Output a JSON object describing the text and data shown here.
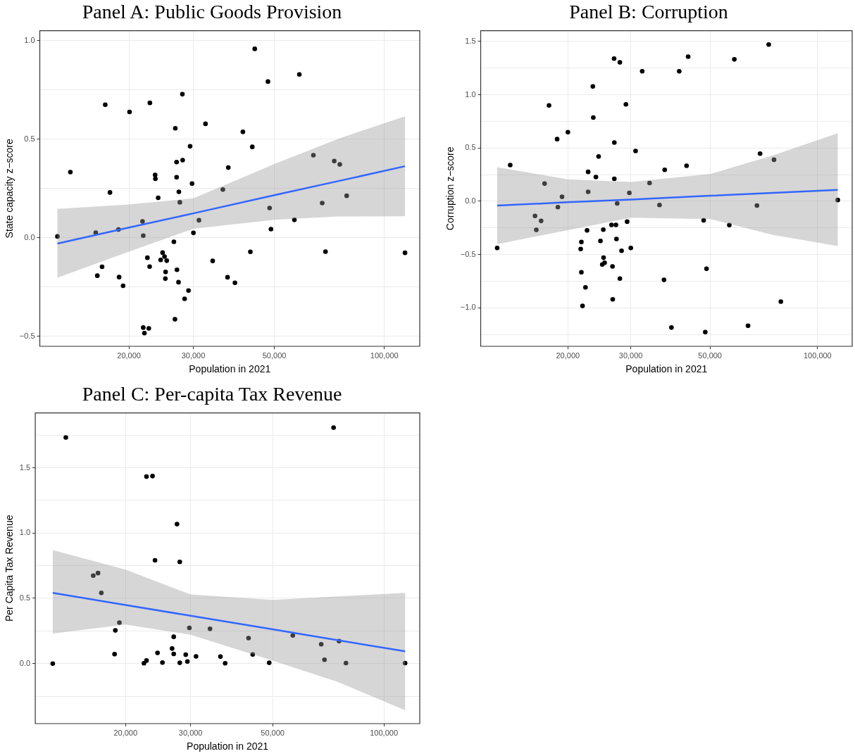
{
  "chart_data": [
    {
      "type": "scatter",
      "title": "Panel A: Public Goods Provision",
      "xlabel": "Population in 2021",
      "ylabel": "State capacity z−score",
      "log": "x",
      "grid": true,
      "xlim": [
        11400,
        125000
      ],
      "xticks": [
        {
          "value": 20000,
          "label": "20,000"
        },
        {
          "value": 30000,
          "label": "30,000"
        },
        {
          "value": 50000,
          "label": "50,000"
        },
        {
          "value": 100000,
          "label": "100,000"
        }
      ],
      "ylim": [
        -0.55,
        1.05
      ],
      "yticks": [
        {
          "value": -0.5,
          "label": "−0.5"
        },
        {
          "value": -0.25,
          "label": null
        },
        {
          "value": 0,
          "label": "0.0"
        },
        {
          "value": 0.25,
          "label": null
        },
        {
          "value": 0.5,
          "label": "0.5"
        },
        {
          "value": 0.75,
          "label": null
        },
        {
          "value": 1,
          "label": "1.0"
        }
      ],
      "series": [
        {
          "marker": "circle",
          "color": "#000000",
          "x": [
            12740,
            13820,
            16220,
            16380,
            16880,
            17220,
            17740,
            18720,
            18790,
            19270,
            20070,
            21780,
            21880,
            21880,
            22040,
            22460,
            22660,
            22780,
            22820,
            23580,
            23620,
            24040,
            24420,
            24720,
            25020,
            25190,
            25150,
            25370,
            26540,
            26720,
            26780,
            27000,
            27000,
            27060,
            27330,
            27390,
            27560,
            28000,
            28050,
            28400,
            29100,
            29400,
            29760,
            30020,
            31080,
            32390,
            33890,
            36140,
            37220,
            37400,
            39000,
            41000,
            42980,
            43500,
            44180,
            48020,
            48520,
            48940,
            56720,
            58520,
            63940,
            67600,
            69000,
            72920,
            75520,
            78860,
            113900
          ],
          "values": [
            0.007,
            0.333,
            0.026,
            -0.192,
            -0.147,
            0.675,
            0.23,
            0.042,
            -0.199,
            -0.243,
            0.638,
            0.083,
            0.011,
            -0.455,
            -0.483,
            -0.101,
            -0.459,
            -0.146,
            0.684,
            0.319,
            0.299,
            0.203,
            -0.112,
            -0.075,
            -0.095,
            -0.173,
            -0.207,
            -0.116,
            -0.02,
            -0.413,
            0.555,
            0.307,
            0.384,
            -0.162,
            -0.225,
            0.233,
            0.18,
            0.728,
            0.394,
            -0.309,
            -0.267,
            0.464,
            0.275,
            0.025,
            0.089,
            0.578,
            -0.117,
            0.245,
            -0.2,
            0.356,
            -0.228,
            0.537,
            -0.071,
            0.461,
            0.958,
            0.792,
            0.151,
            0.044,
            0.091,
            0.828,
            0.419,
            0.176,
            -0.07,
            0.389,
            0.372,
            0.213,
            -0.076
          ]
        },
        {
          "type": "line",
          "marker": "none",
          "color": "#3366ff",
          "x": [
            12740,
            20000,
            30000,
            50000,
            75000,
            113900
          ],
          "values": [
            -0.029,
            0.052,
            0.124,
            0.216,
            0.288,
            0.363
          ],
          "lower": [
            -0.202,
            -0.07,
            0.046,
            0.091,
            0.108,
            0.109
          ],
          "upper": [
            0.147,
            0.169,
            0.2,
            0.374,
            0.503,
            0.616
          ]
        }
      ]
    },
    {
      "type": "scatter",
      "title": "Panel B: Corruption",
      "xlabel": "Population in 2021",
      "ylabel": "Corruption z−score",
      "log": "x",
      "grid": true,
      "xlim": [
        11400,
        125000
      ],
      "xticks": [
        {
          "value": 20000,
          "label": "20,000"
        },
        {
          "value": 30000,
          "label": "30,000"
        },
        {
          "value": 50000,
          "label": "50,000"
        },
        {
          "value": 100000,
          "label": "100,000"
        }
      ],
      "ylim": [
        -1.36,
        1.6
      ],
      "yticks": [
        {
          "value": -1.25,
          "label": null
        },
        {
          "value": -1,
          "label": "−1.0"
        },
        {
          "value": -0.75,
          "label": null
        },
        {
          "value": -0.5,
          "label": "−0.5"
        },
        {
          "value": -0.25,
          "label": null
        },
        {
          "value": 0,
          "label": "0.0"
        },
        {
          "value": 0.25,
          "label": null
        },
        {
          "value": 0.5,
          "label": "0.5"
        },
        {
          "value": 0.75,
          "label": null
        },
        {
          "value": 1,
          "label": "1.0"
        },
        {
          "value": 1.25,
          "label": null
        },
        {
          "value": 1.5,
          "label": "1.5"
        }
      ],
      "series": [
        {
          "marker": "circle",
          "color": "#000000",
          "x": [
            12680,
            13790,
            16180,
            16320,
            16830,
            17210,
            17710,
            18660,
            18750,
            19260,
            20000,
            21720,
            21820,
            21820,
            21980,
            22400,
            22630,
            22790,
            22790,
            23490,
            23560,
            23960,
            24380,
            24670,
            24960,
            25130,
            25170,
            25340,
            26490,
            26660,
            26700,
            26940,
            26980,
            26980,
            27260,
            27350,
            27480,
            27960,
            27960,
            28270,
            29070,
            29300,
            29720,
            30000,
            30940,
            32290,
            33860,
            36100,
            37160,
            37330,
            38980,
            40990,
            42980,
            43420,
            47980,
            48490,
            48880,
            56620,
            58480,
            63880,
            67650,
            69030,
            72990,
            75520,
            78920,
            113900
          ],
          "values": [
            -0.437,
            0.34,
            -0.137,
            -0.268,
            -0.184,
            0.166,
            0.899,
            0.583,
            -0.055,
            0.042,
            0.648,
            -0.447,
            -0.382,
            -0.665,
            -0.981,
            -0.807,
            -0.273,
            0.276,
            0.089,
            1.077,
            0.785,
            0.228,
            0.42,
            -0.372,
            -0.593,
            -0.266,
            -0.529,
            -0.576,
            -0.221,
            -0.611,
            -0.919,
            1.338,
            0.211,
            0.551,
            -0.221,
            -0.353,
            -0.02,
            1.303,
            -0.725,
            -0.464,
            0.909,
            -0.191,
            0.079,
            -0.437,
            0.472,
            1.219,
            0.171,
            -0.035,
            -0.737,
            0.295,
            -1.184,
            1.219,
            0.333,
            1.356,
            -0.179,
            -1.226,
            -0.633,
            -0.223,
            1.331,
            -1.167,
            -0.04,
            0.447,
            1.47,
            0.39,
            -0.941,
            0.012
          ]
        },
        {
          "type": "line",
          "marker": "none",
          "color": "#3366ff",
          "x": [
            12680,
            20000,
            30000,
            50000,
            75000,
            113900
          ],
          "values": [
            -0.04,
            -0.009,
            0.017,
            0.052,
            0.079,
            0.107
          ],
          "lower": [
            -0.402,
            -0.27,
            -0.154,
            -0.166,
            -0.315,
            -0.42
          ],
          "upper": [
            0.32,
            0.206,
            0.181,
            0.256,
            0.43,
            0.638
          ]
        }
      ]
    },
    {
      "type": "scatter",
      "title": "Panel C: Per-capita Tax Revenue",
      "xlabel": "Population in 2021",
      "ylabel": "Per Capita Tax Revenue",
      "log": "x",
      "grid": true,
      "xlim": [
        11400,
        125000
      ],
      "xticks": [
        {
          "value": 20000,
          "label": "20,000"
        },
        {
          "value": 30000,
          "label": "30,000"
        },
        {
          "value": 50000,
          "label": "50,000"
        },
        {
          "value": 100000,
          "label": "100,000"
        }
      ],
      "ylim": [
        -0.46,
        1.92
      ],
      "yticks": [
        {
          "value": -0.25,
          "label": null
        },
        {
          "value": 0,
          "label": "0.0"
        },
        {
          "value": 0.25,
          "label": null
        },
        {
          "value": 0.5,
          "label": "0.5"
        },
        {
          "value": 0.75,
          "label": null
        },
        {
          "value": 1,
          "label": "1.0"
        },
        {
          "value": 1.25,
          "label": null
        },
        {
          "value": 1.5,
          "label": "1.5"
        },
        {
          "value": 1.75,
          "label": null
        }
      ],
      "series": [
        {
          "marker": "circle",
          "color": "#000000",
          "x": [
            12710,
            13790,
            16360,
            16850,
            17200,
            18680,
            18770,
            19250,
            22430,
            22790,
            22790,
            23660,
            24030,
            24410,
            25170,
            26730,
            27000,
            27000,
            27560,
            28040,
            28040,
            29100,
            29400,
            29770,
            31030,
            33850,
            36120,
            37200,
            43030,
            44160,
            48940,
            56700,
            67660,
            69060,
            73080,
            75630,
            78940,
            114100
          ],
          "values": [
            0,
            1.732,
            0.674,
            0.693,
            0.541,
            0.072,
            0.254,
            0.314,
            0.002,
            1.432,
            0.023,
            1.436,
            0.791,
            0.082,
            0.008,
            0.115,
            0.205,
            0.074,
            1.068,
            0.779,
            0.006,
            0.068,
            0.016,
            0.273,
            0.055,
            0.266,
            0.053,
            0.002,
            0.195,
            0.07,
            0.006,
            0.215,
            0.148,
            0.029,
            1.807,
            0.172,
            0.004,
            0.004
          ]
        },
        {
          "type": "line",
          "marker": "none",
          "color": "#3366ff",
          "x": [
            12710,
            20000,
            30000,
            50000,
            75000,
            114100
          ],
          "values": [
            0.541,
            0.449,
            0.366,
            0.262,
            0.179,
            0.094
          ],
          "lower": [
            0.23,
            0.299,
            0.221,
            0.023,
            -0.141,
            -0.357
          ],
          "upper": [
            0.869,
            0.719,
            0.529,
            0.488,
            0.514,
            0.541
          ]
        }
      ]
    }
  ]
}
